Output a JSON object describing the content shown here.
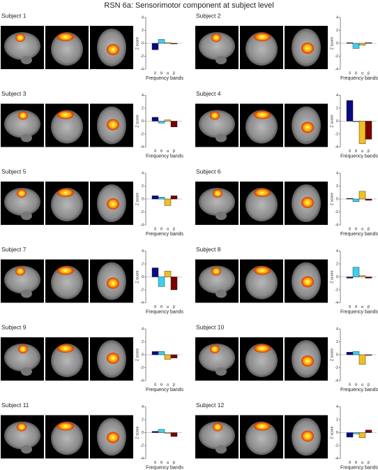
{
  "title": "RSN 6a: Sensorimotor component at subject level",
  "chart_data": [
    {
      "type": "bar",
      "title": "Subject 1",
      "categories": [
        "δ",
        "θ",
        "α",
        "β"
      ],
      "values": [
        -1.0,
        0.6,
        0.1,
        -0.1
      ],
      "colors": [
        "#0a0a80",
        "#3ad0f0",
        "#f0c020",
        "#7a0000"
      ],
      "ylim": [
        -4,
        4
      ],
      "yticks": [
        -4,
        -2,
        0,
        2,
        4
      ],
      "ylabel": "Z score",
      "xlabel": "Frequency bands"
    },
    {
      "type": "bar",
      "title": "Subject 2",
      "categories": [
        "δ",
        "θ",
        "α",
        "β"
      ],
      "values": [
        0.1,
        -0.8,
        -0.3,
        0.1
      ],
      "colors": [
        "#0a0a80",
        "#3ad0f0",
        "#f0c020",
        "#7a0000"
      ],
      "ylim": [
        -4,
        4
      ],
      "yticks": [
        -4,
        -2,
        0,
        2,
        4
      ],
      "ylabel": "Z score",
      "xlabel": "Frequency bands"
    },
    {
      "type": "bar",
      "title": "Subject 3",
      "categories": [
        "δ",
        "θ",
        "α",
        "β"
      ],
      "values": [
        0.6,
        -0.3,
        0.2,
        -0.9
      ],
      "colors": [
        "#0a0a80",
        "#3ad0f0",
        "#f0c020",
        "#7a0000"
      ],
      "ylim": [
        -4,
        4
      ],
      "yticks": [
        -4,
        -2,
        0,
        2,
        4
      ],
      "ylabel": "Z score",
      "xlabel": "Frequency bands"
    },
    {
      "type": "bar",
      "title": "Subject 4",
      "categories": [
        "δ",
        "θ",
        "α",
        "β"
      ],
      "values": [
        3.2,
        -0.1,
        -3.5,
        -2.8
      ],
      "colors": [
        "#0a0a80",
        "#3ad0f0",
        "#f0c020",
        "#7a0000"
      ],
      "ylim": [
        -4,
        4
      ],
      "yticks": [
        -4,
        -2,
        0,
        2,
        4
      ],
      "ylabel": "Z score",
      "xlabel": "Frequency bands"
    },
    {
      "type": "bar",
      "title": "Subject 5",
      "categories": [
        "δ",
        "θ",
        "α",
        "β"
      ],
      "values": [
        0.5,
        0.3,
        -1.0,
        0.5
      ],
      "colors": [
        "#0a0a80",
        "#3ad0f0",
        "#f0c020",
        "#7a0000"
      ],
      "ylim": [
        -4,
        4
      ],
      "yticks": [
        -4,
        -2,
        0,
        2,
        4
      ],
      "ylabel": "Z score",
      "xlabel": "Frequency bands"
    },
    {
      "type": "bar",
      "title": "Subject 6",
      "categories": [
        "δ",
        "θ",
        "α",
        "β"
      ],
      "values": [
        0.1,
        -0.4,
        1.2,
        -0.2
      ],
      "colors": [
        "#0a0a80",
        "#3ad0f0",
        "#f0c020",
        "#7a0000"
      ],
      "ylim": [
        -4,
        4
      ],
      "yticks": [
        -4,
        -2,
        0,
        2,
        4
      ],
      "ylabel": "Z score",
      "xlabel": "Frequency bands"
    },
    {
      "type": "bar",
      "title": "Subject 7",
      "categories": [
        "δ",
        "θ",
        "α",
        "β"
      ],
      "values": [
        1.4,
        -1.5,
        0.9,
        -2.0
      ],
      "colors": [
        "#0a0a80",
        "#3ad0f0",
        "#f0c020",
        "#7a0000"
      ],
      "ylim": [
        -4,
        4
      ],
      "yticks": [
        -4,
        -2,
        0,
        2,
        4
      ],
      "ylabel": "Z score",
      "xlabel": "Frequency bands"
    },
    {
      "type": "bar",
      "title": "Subject 8",
      "categories": [
        "δ",
        "θ",
        "α",
        "β"
      ],
      "values": [
        -0.2,
        1.5,
        0.2,
        -0.2
      ],
      "colors": [
        "#0a0a80",
        "#3ad0f0",
        "#f0c020",
        "#7a0000"
      ],
      "ylim": [
        -4,
        4
      ],
      "yticks": [
        -4,
        -2,
        0,
        2,
        4
      ],
      "ylabel": "Z score",
      "xlabel": "Frequency bands"
    },
    {
      "type": "bar",
      "title": "Subject 9",
      "categories": [
        "δ",
        "θ",
        "α",
        "β"
      ],
      "values": [
        0.5,
        0.5,
        -0.7,
        -0.5
      ],
      "colors": [
        "#0a0a80",
        "#3ad0f0",
        "#f0c020",
        "#7a0000"
      ],
      "ylim": [
        -4,
        4
      ],
      "yticks": [
        -4,
        -2,
        0,
        2,
        4
      ],
      "ylabel": "Z score",
      "xlabel": "Frequency bands"
    },
    {
      "type": "bar",
      "title": "Subject 10",
      "categories": [
        "δ",
        "θ",
        "α",
        "β"
      ],
      "values": [
        0.4,
        0.5,
        -1.5,
        -0.1
      ],
      "colors": [
        "#0a0a80",
        "#3ad0f0",
        "#f0c020",
        "#7a0000"
      ],
      "ylim": [
        -4,
        4
      ],
      "yticks": [
        -4,
        -2,
        0,
        2,
        4
      ],
      "ylabel": "Z score",
      "xlabel": "Frequency bands"
    },
    {
      "type": "bar",
      "title": "Subject 11",
      "categories": [
        "δ",
        "θ",
        "α",
        "β"
      ],
      "values": [
        0.2,
        0.5,
        -0.1,
        -0.6
      ],
      "colors": [
        "#0a0a80",
        "#3ad0f0",
        "#f0c020",
        "#7a0000"
      ],
      "ylim": [
        -4,
        4
      ],
      "yticks": [
        -4,
        -2,
        0,
        2,
        4
      ],
      "ylabel": "Z score",
      "xlabel": "Frequency bands"
    },
    {
      "type": "bar",
      "title": "Subject 12",
      "categories": [
        "δ",
        "θ",
        "α",
        "β"
      ],
      "values": [
        -0.7,
        -0.2,
        -0.8,
        0.4
      ],
      "colors": [
        "#0a0a80",
        "#3ad0f0",
        "#f0c020",
        "#7a0000"
      ],
      "ylim": [
        -4,
        4
      ],
      "yticks": [
        -4,
        -2,
        0,
        2,
        4
      ],
      "ylabel": "Z score",
      "xlabel": "Frequency bands"
    }
  ]
}
